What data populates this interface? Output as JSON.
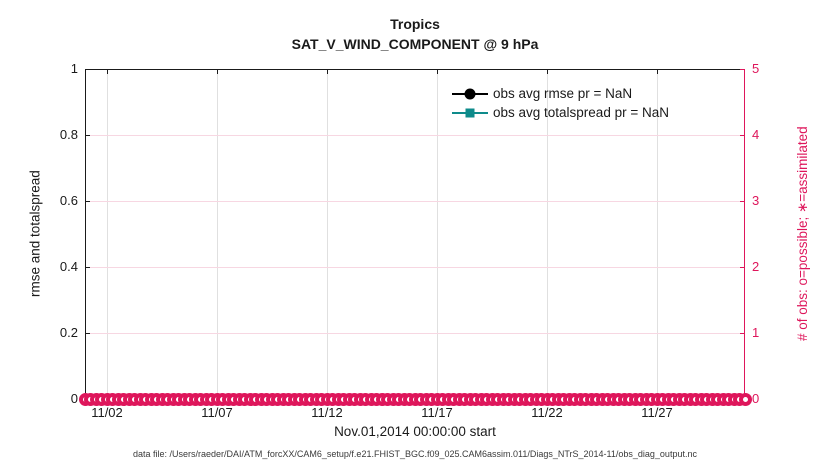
{
  "figure": {
    "footer": "data file: /Users/raeder/DAI/ATM_forcXX/CAM6_setup/f.e21.FHIST_BGC.f09_025.CAM6assim.011/Diags_NTrS_2014-11/obs_diag_output.nc"
  },
  "chart_data": {
    "type": "line",
    "title": "Tropics",
    "subtitle": "SAT_V_WIND_COMPONENT @ 9 hPa",
    "xlabel": "Nov.01,2014 00:00:00 start",
    "ylabel_left": "rmse and totalspread",
    "ylabel_right": "# of obs: o=possible; ∗=assimilated",
    "ylim_left": [
      0,
      1
    ],
    "ylim_right": [
      0,
      5
    ],
    "yticks_left": [
      "0",
      "0.2",
      "0.4",
      "0.6",
      "0.8",
      "1"
    ],
    "yticks_right": [
      "0",
      "1",
      "2",
      "3",
      "4",
      "5"
    ],
    "xticks": [
      "11/02",
      "11/07",
      "11/12",
      "11/17",
      "11/22",
      "11/27"
    ],
    "xtick_days": [
      1,
      6,
      11,
      16,
      21,
      26
    ],
    "x_range_days": [
      0,
      30
    ],
    "grid": {
      "vertical_color": "#e0e0e0",
      "horizontal_color": "#f7d7e2",
      "grid_on": true
    },
    "legend_position": "top-right inside, no box",
    "series": [
      {
        "name": "obs avg rmse pr = NaN",
        "color": "#000000",
        "marker": "circle",
        "values": "NaN"
      },
      {
        "name": "obs avg totalspread pr = NaN",
        "color": "#0e8b8b",
        "marker": "square",
        "values": "NaN"
      },
      {
        "name": "# of obs: o=possible; ∗=assimilated",
        "color": "#de165b",
        "marker": "o",
        "y_axis": "right",
        "constant_value": 0,
        "marker_count": 121
      }
    ]
  }
}
